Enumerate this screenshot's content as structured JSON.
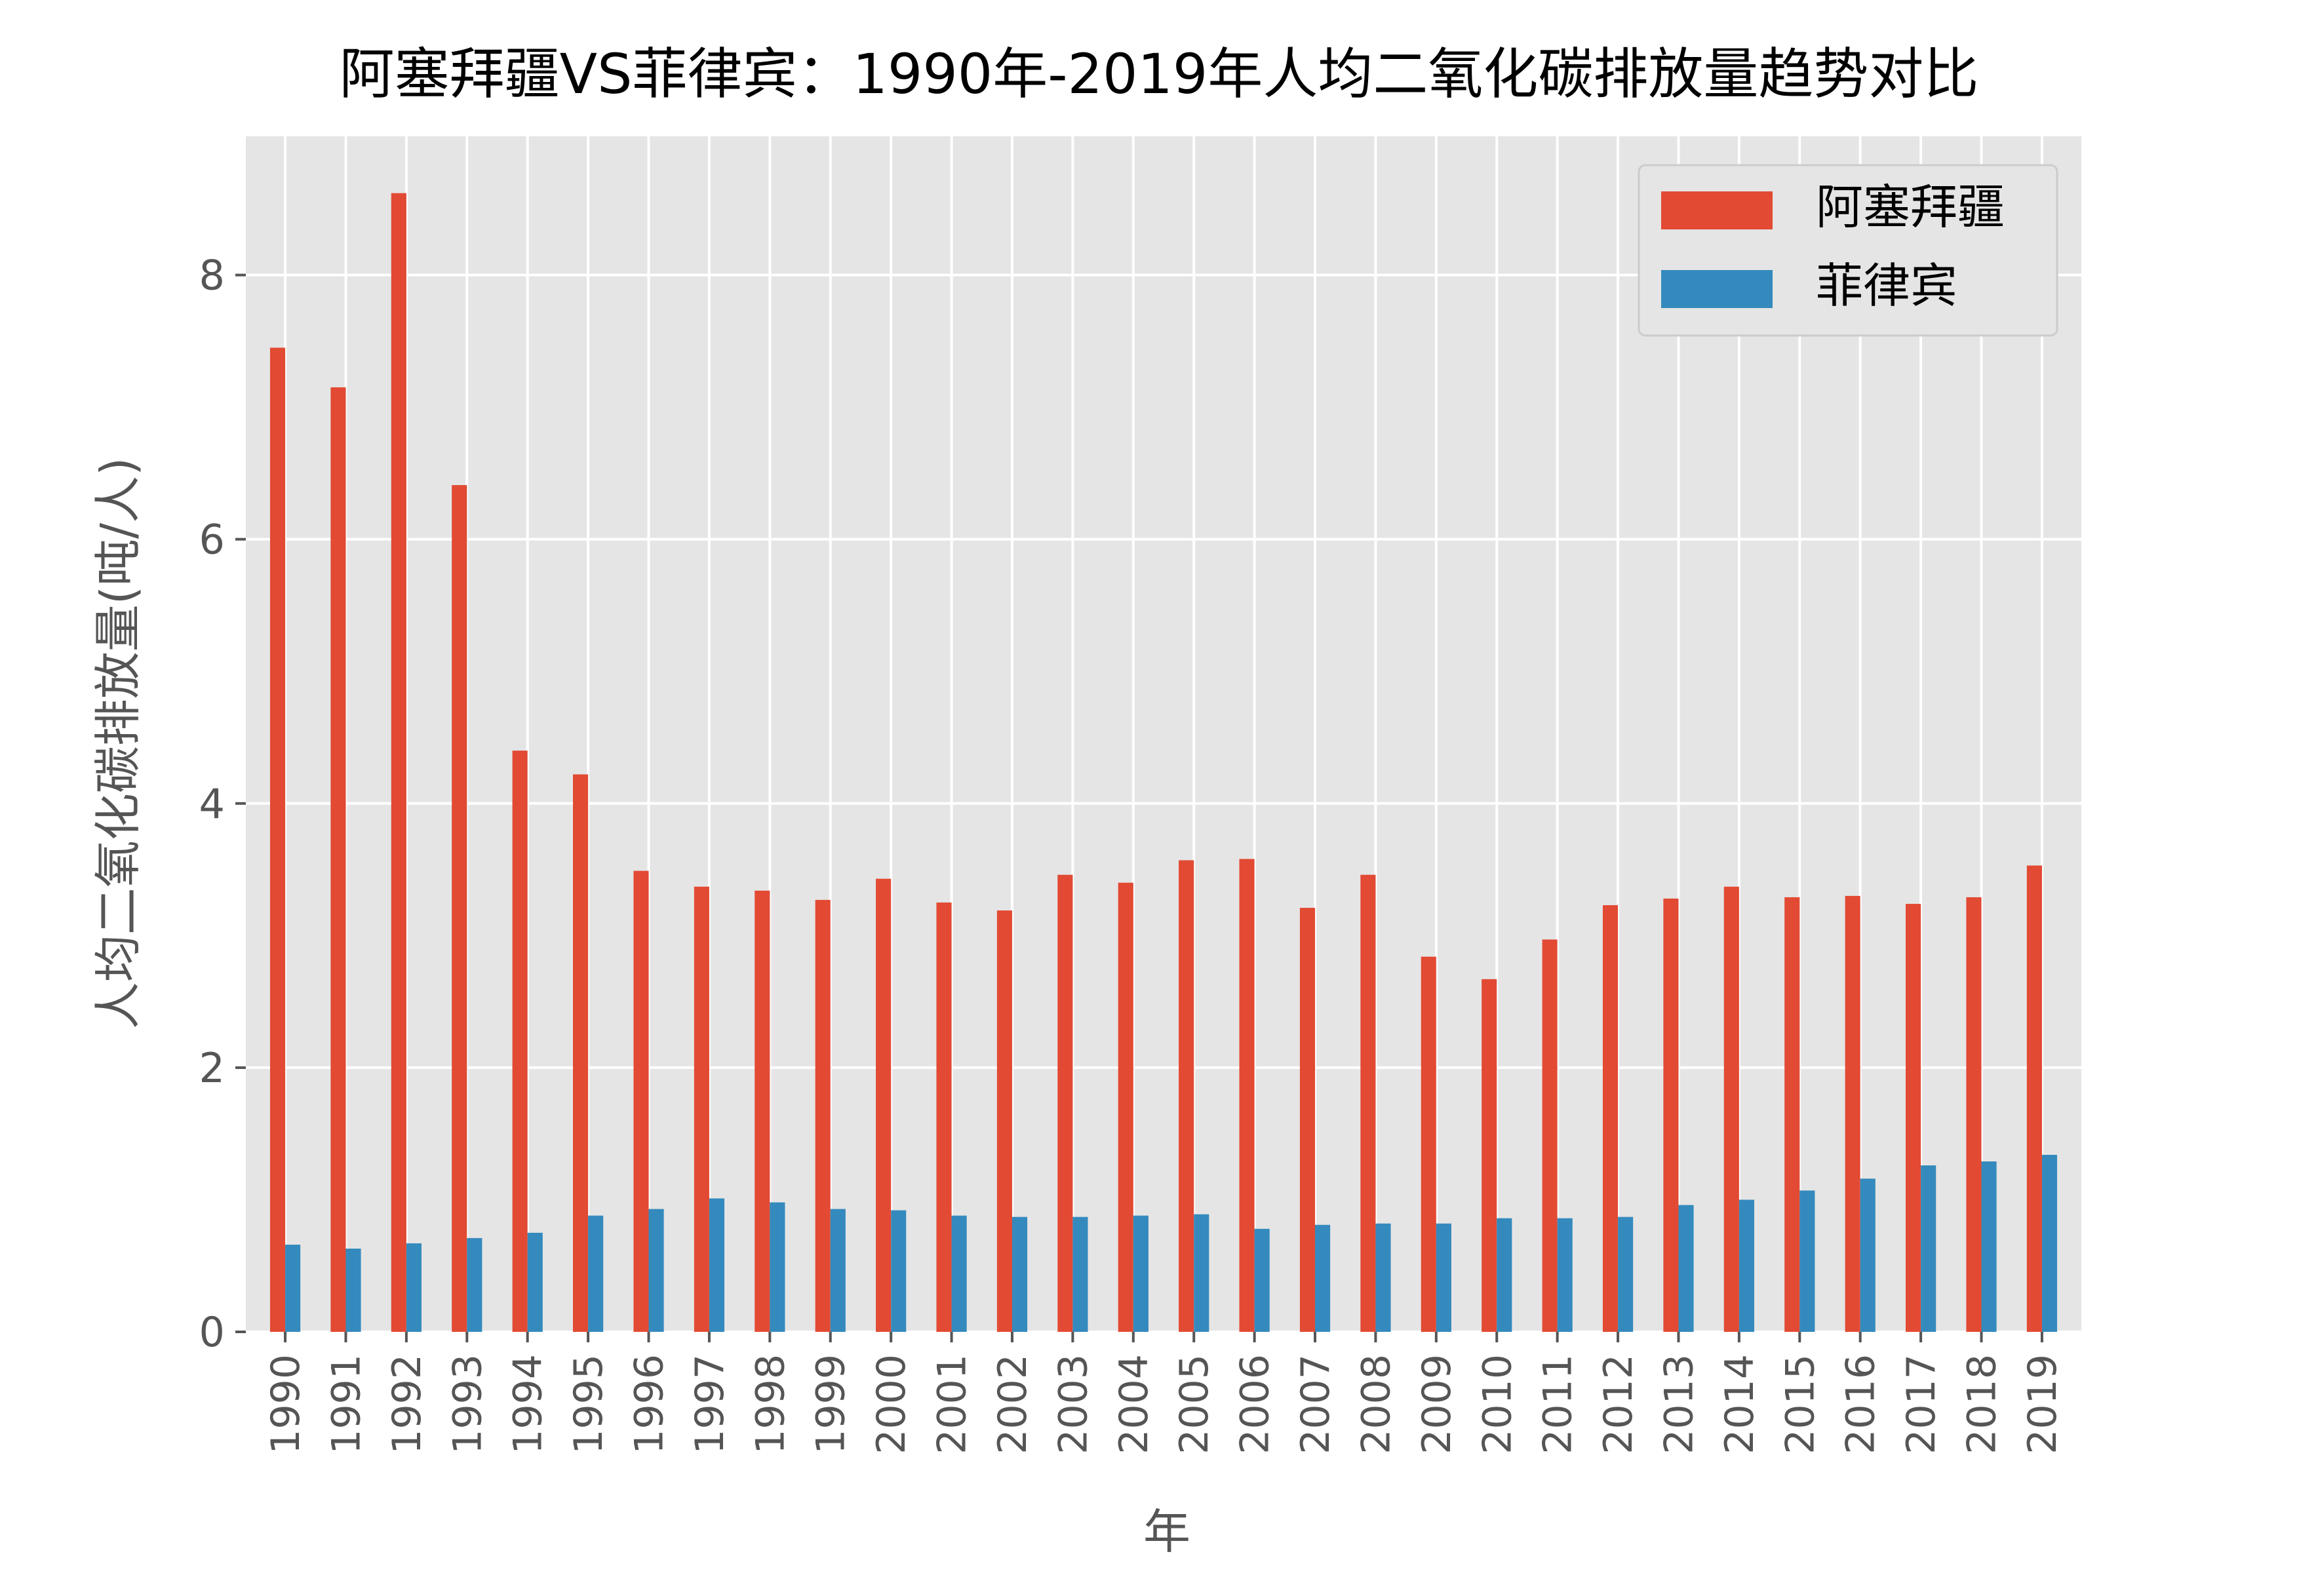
{
  "chart_data": {
    "type": "bar",
    "title": "阿塞拜疆VS菲律宾：1990年-2019年人均二氧化碳排放量趋势对比",
    "xlabel": "年",
    "ylabel": "人均二氧化碳排放量(吨/人)",
    "categories": [
      "1990",
      "1991",
      "1992",
      "1993",
      "1994",
      "1995",
      "1996",
      "1997",
      "1998",
      "1999",
      "2000",
      "2001",
      "2002",
      "2003",
      "2004",
      "2005",
      "2006",
      "2007",
      "2008",
      "2009",
      "2010",
      "2011",
      "2012",
      "2013",
      "2014",
      "2015",
      "2016",
      "2017",
      "2018",
      "2019"
    ],
    "series": [
      {
        "name": "阿塞拜疆",
        "color": "#E24A33",
        "values": [
          7.45,
          7.15,
          8.62,
          6.41,
          4.4,
          4.22,
          3.49,
          3.37,
          3.34,
          3.27,
          3.43,
          3.25,
          3.19,
          3.46,
          3.4,
          3.57,
          3.58,
          3.21,
          3.46,
          2.84,
          2.67,
          2.97,
          3.23,
          3.28,
          3.37,
          3.29,
          3.3,
          3.24,
          3.29,
          3.53
        ]
      },
      {
        "name": "菲律宾",
        "color": "#348ABD",
        "values": [
          0.66,
          0.63,
          0.67,
          0.71,
          0.75,
          0.88,
          0.93,
          1.01,
          0.98,
          0.93,
          0.92,
          0.88,
          0.87,
          0.87,
          0.88,
          0.89,
          0.78,
          0.81,
          0.82,
          0.82,
          0.86,
          0.86,
          0.87,
          0.96,
          1.0,
          1.07,
          1.16,
          1.26,
          1.29,
          1.34
        ]
      }
    ],
    "ylim": [
      0,
      9.05
    ],
    "yticks": [
      "0",
      "2",
      "4",
      "6",
      "8"
    ],
    "grid": true,
    "legend_position": "top-right",
    "style": {
      "plot_background": "#E5E5E5",
      "grid_color": "#FFFFFF",
      "tick_label_color": "#555555",
      "title_color": "#000000"
    }
  }
}
